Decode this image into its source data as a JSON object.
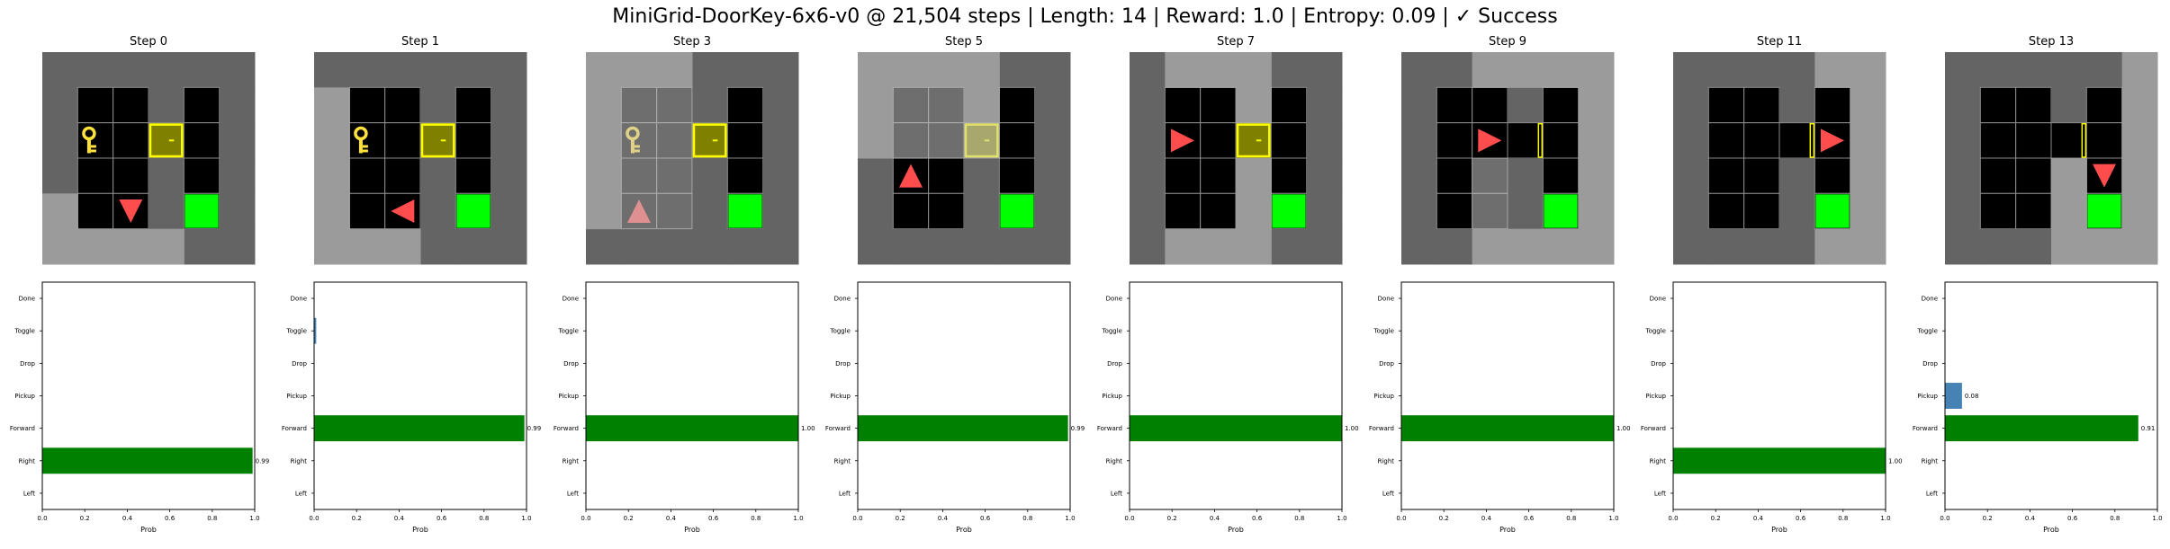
{
  "figure_title": "MiniGrid-DoorKey-6x6-v0 @ 21,504 steps | Length: 14 | Reward: 1.0 | Entropy: 0.09 | ✓ Success",
  "colors": {
    "wall": "#646464",
    "floor": "#000000",
    "seen_floor": "#4d4d4d",
    "unseen_overlay": "#8f8f8f",
    "grid_line": "#8c8c8c",
    "key": "#ffe23a",
    "door_border": "#ffff00",
    "goal": "#00ff00",
    "agent": "#ff4d4d",
    "bar_selected": "#008000",
    "bar_other": "#4682b4"
  },
  "panels": [
    {
      "title": "Step 0",
      "frame": {
        "agent": {
          "row": 4,
          "col": 2,
          "dir": "down"
        },
        "key": {
          "row": 2,
          "col": 1
        },
        "door": {
          "row": 2,
          "col": 3,
          "state": "locked"
        },
        "goal": {
          "row": 4,
          "col": 4
        },
        "visible": "bottom_left"
      },
      "chart_data": {
        "type": "bar",
        "orientation": "horizontal",
        "categories": [
          "Left",
          "Right",
          "Forward",
          "Pickup",
          "Drop",
          "Toggle",
          "Done"
        ],
        "values": [
          0.0,
          0.99,
          0.0,
          0.0,
          0.0,
          0.0,
          0.0
        ],
        "selected": "Right",
        "value_label": "0.99",
        "xlabel": "Prob",
        "xlim": [
          0,
          1.0
        ],
        "xticks": [
          "0.0",
          "0.2",
          "0.4",
          "0.6",
          "0.8",
          "1.0"
        ]
      }
    },
    {
      "title": "Step 1",
      "frame": {
        "agent": {
          "row": 4,
          "col": 2,
          "dir": "left"
        },
        "key": {
          "row": 2,
          "col": 1
        },
        "door": {
          "row": 2,
          "col": 3,
          "state": "locked"
        },
        "goal": {
          "row": 4,
          "col": 4
        },
        "visible": "left_strip"
      },
      "chart_data": {
        "type": "bar",
        "orientation": "horizontal",
        "categories": [
          "Left",
          "Right",
          "Forward",
          "Pickup",
          "Drop",
          "Toggle",
          "Done"
        ],
        "values": [
          0.0,
          0.0,
          0.99,
          0.0,
          0.0,
          0.01,
          0.0
        ],
        "selected": "Forward",
        "value_label": "0.99",
        "xlabel": "Prob",
        "xlim": [
          0,
          1.0
        ],
        "xticks": [
          "0.0",
          "0.2",
          "0.4",
          "0.6",
          "0.8",
          "1.0"
        ]
      }
    },
    {
      "title": "Step 3",
      "frame": {
        "agent": {
          "row": 4,
          "col": 1,
          "dir": "up"
        },
        "key": {
          "row": 2,
          "col": 1
        },
        "door": {
          "row": 2,
          "col": 3,
          "state": "locked"
        },
        "goal": {
          "row": 4,
          "col": 4
        },
        "visible": "left_half"
      },
      "chart_data": {
        "type": "bar",
        "orientation": "horizontal",
        "categories": [
          "Left",
          "Right",
          "Forward",
          "Pickup",
          "Drop",
          "Toggle",
          "Done"
        ],
        "values": [
          0.0,
          0.0,
          1.0,
          0.0,
          0.0,
          0.0,
          0.0
        ],
        "selected": "Forward",
        "value_label": "1.00",
        "xlabel": "Prob",
        "xlim": [
          0,
          1.0
        ],
        "xticks": [
          "0.0",
          "0.2",
          "0.4",
          "0.6",
          "0.8",
          "1.0"
        ]
      }
    },
    {
      "title": "Step 5",
      "frame": {
        "agent": {
          "row": 3,
          "col": 1,
          "dir": "up"
        },
        "key": null,
        "door": {
          "row": 2,
          "col": 3,
          "state": "locked"
        },
        "goal": {
          "row": 4,
          "col": 4
        },
        "visible": "top_left"
      },
      "chart_data": {
        "type": "bar",
        "orientation": "horizontal",
        "categories": [
          "Left",
          "Right",
          "Forward",
          "Pickup",
          "Drop",
          "Toggle",
          "Done"
        ],
        "values": [
          0.0,
          0.0,
          0.99,
          0.0,
          0.0,
          0.0,
          0.0
        ],
        "selected": "Forward",
        "value_label": "0.99",
        "xlabel": "Prob",
        "xlim": [
          0,
          1.0
        ],
        "xticks": [
          "0.0",
          "0.2",
          "0.4",
          "0.6",
          "0.8",
          "1.0"
        ]
      }
    },
    {
      "title": "Step 7",
      "frame": {
        "agent": {
          "row": 2,
          "col": 1,
          "dir": "right"
        },
        "key": null,
        "door": {
          "row": 2,
          "col": 3,
          "state": "locked"
        },
        "goal": {
          "row": 4,
          "col": 4
        },
        "visible": "middle_band"
      },
      "chart_data": {
        "type": "bar",
        "orientation": "horizontal",
        "categories": [
          "Left",
          "Right",
          "Forward",
          "Pickup",
          "Drop",
          "Toggle",
          "Done"
        ],
        "values": [
          0.0,
          0.0,
          1.0,
          0.0,
          0.0,
          0.0,
          0.0
        ],
        "selected": "Forward",
        "value_label": "1.00",
        "xlabel": "Prob",
        "xlim": [
          0,
          1.0
        ],
        "xticks": [
          "0.0",
          "0.2",
          "0.4",
          "0.6",
          "0.8",
          "1.0"
        ]
      }
    },
    {
      "title": "Step 9",
      "frame": {
        "agent": {
          "row": 2,
          "col": 2,
          "dir": "right"
        },
        "key": null,
        "door": {
          "row": 2,
          "col": 3,
          "state": "open"
        },
        "goal": {
          "row": 4,
          "col": 4
        },
        "visible": "right_part"
      },
      "chart_data": {
        "type": "bar",
        "orientation": "horizontal",
        "categories": [
          "Left",
          "Right",
          "Forward",
          "Pickup",
          "Drop",
          "Toggle",
          "Done"
        ],
        "values": [
          0.0,
          0.0,
          1.0,
          0.0,
          0.0,
          0.0,
          0.0
        ],
        "selected": "Forward",
        "value_label": "1.00",
        "xlabel": "Prob",
        "xlim": [
          0,
          1.0
        ],
        "xticks": [
          "0.0",
          "0.2",
          "0.4",
          "0.6",
          "0.8",
          "1.0"
        ]
      }
    },
    {
      "title": "Step 11",
      "frame": {
        "agent": {
          "row": 2,
          "col": 4,
          "dir": "right"
        },
        "key": null,
        "door": {
          "row": 2,
          "col": 3,
          "state": "open"
        },
        "goal": {
          "row": 4,
          "col": 4
        },
        "visible": "right_column"
      },
      "chart_data": {
        "type": "bar",
        "orientation": "horizontal",
        "categories": [
          "Left",
          "Right",
          "Forward",
          "Pickup",
          "Drop",
          "Toggle",
          "Done"
        ],
        "values": [
          0.0,
          1.0,
          0.0,
          0.0,
          0.0,
          0.0,
          0.0
        ],
        "selected": "Right",
        "value_label": "1.00",
        "xlabel": "Prob",
        "xlim": [
          0,
          1.0
        ],
        "xticks": [
          "0.0",
          "0.2",
          "0.4",
          "0.6",
          "0.8",
          "1.0"
        ]
      }
    },
    {
      "title": "Step 13",
      "frame": {
        "agent": {
          "row": 3,
          "col": 4,
          "dir": "down"
        },
        "key": null,
        "door": {
          "row": 2,
          "col": 3,
          "state": "open"
        },
        "goal": {
          "row": 4,
          "col": 4
        },
        "visible": "bottom_right"
      },
      "chart_data": {
        "type": "bar",
        "orientation": "horizontal",
        "categories": [
          "Left",
          "Right",
          "Forward",
          "Pickup",
          "Drop",
          "Toggle",
          "Done"
        ],
        "values": [
          0.0,
          0.0,
          0.91,
          0.08,
          0.0,
          0.0,
          0.0
        ],
        "selected": "Forward",
        "value_label": "0.91",
        "second_label": "0.08",
        "xlabel": "Prob",
        "xlim": [
          0,
          1.0
        ],
        "xticks": [
          "0.0",
          "0.2",
          "0.4",
          "0.6",
          "0.8",
          "1.0"
        ]
      }
    }
  ]
}
